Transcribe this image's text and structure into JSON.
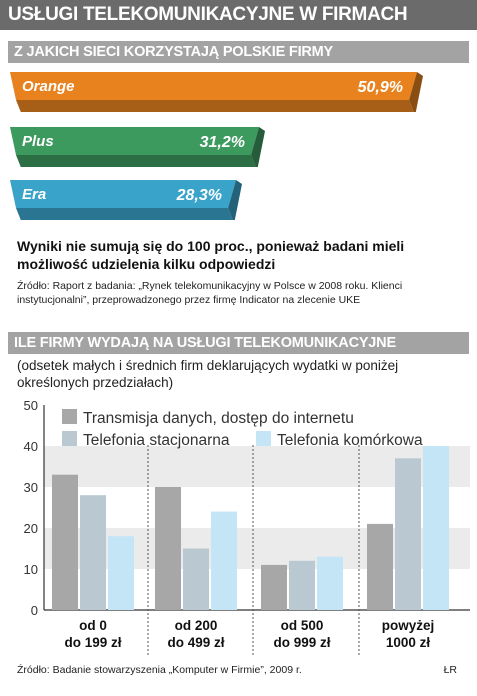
{
  "title": "USŁUGI TELEKOMUNIKACYJNE W FIRMACH",
  "section1_title": "Z JAKICH SIECI KORZYSTAJĄ POLSKIE FIRMY",
  "section2_title": "ILE FIRMY WYDAJĄ NA USŁUGI TELEKOMUNIKACYJNE",
  "note": "Wyniki nie sumują się do 100 proc., ponieważ badani mieli możliwość udzielenia kilku odpowiedzi",
  "source1": "Źródło: Raport z badania: „Rynek telekomunikacyjny w Polsce w 2008 roku. Klienci instytucjonalni”, przeprowadzonego przez firmę Indicator na zlecenie UKE",
  "subtitle": "(odsetek małych i średnich firm deklarujących wydatki w poniżej określonych przedziałach)",
  "source2": "Źródło: Badanie stowarzyszenia „Komputer w Firmie”, 2009 r.",
  "author": "ŁR",
  "chart_data": [
    {
      "type": "bar",
      "orientation": "horizontal",
      "categories": [
        "Orange",
        "Plus",
        "Era"
      ],
      "values": [
        50.9,
        31.2,
        28.3
      ],
      "value_labels": [
        "50,9%",
        "31,2%",
        "28,3%"
      ],
      "colors": [
        "#e8821e",
        "#3d9a5f",
        "#3aa3c9"
      ]
    },
    {
      "type": "bar",
      "categories": [
        "od 0\ndo 199 zł",
        "od 200\ndo 499 zł",
        "od 500\ndo 999 zł",
        "powyżej\n1000 zł"
      ],
      "series": [
        {
          "name": "Transmisja danych, dostęp do internetu",
          "values": [
            33,
            30,
            11,
            21
          ],
          "color": "#a7a7a7"
        },
        {
          "name": "Telefonia stacjonarna",
          "values": [
            28,
            15,
            12,
            37
          ],
          "color": "#b9c8d1"
        },
        {
          "name": "Telefonia komórkowa",
          "values": [
            18,
            24,
            13,
            40
          ],
          "color": "#c4e5f6"
        }
      ],
      "ylim": [
        0,
        50
      ],
      "yticks": [
        0,
        10,
        20,
        30,
        40,
        50
      ],
      "grid": true,
      "legend": "top"
    }
  ]
}
